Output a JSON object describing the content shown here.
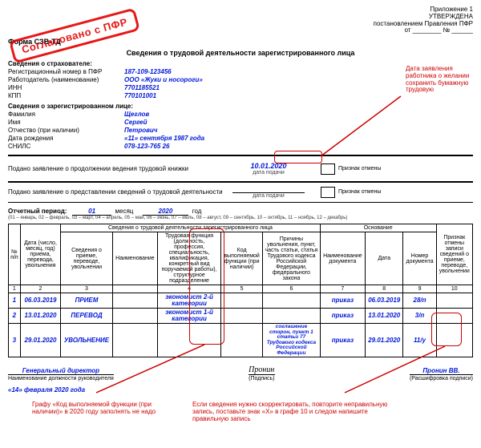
{
  "header": {
    "app1": "Приложение 1",
    "approved": "УТВЕРЖДЕНА",
    "bylaw": "постановлением Правления ПФР",
    "bylaw2": "от ________ № ______"
  },
  "form": {
    "code": "Форма СЗВ-ТД",
    "title": "Сведения о трудовой деятельности зарегистрированного лица"
  },
  "stamp": "Согласовано с ПФР",
  "insurer": {
    "section": "Сведения о страхователе:",
    "reg_label": "Регистрационный номер в ПФР",
    "reg_value": "187-109-123456",
    "employer_label": "Работодатель (наименование)",
    "employer_value": "ООО «Жуки и носороги»",
    "inn_label": "ИНН",
    "inn_value": "7701185521",
    "kpp_label": "КПП",
    "kpp_value": "770101001"
  },
  "person": {
    "section": "Сведения о зарегистрированном лице:",
    "lastname_label": "Фамилия",
    "lastname": "Щеглов",
    "firstname_label": "Имя",
    "firstname": "Сергей",
    "patronymic_label": "Отчество (при наличии)",
    "patronymic": "Петрович",
    "dob_label": "Дата рождения",
    "dob": "«11» сентября 1987 года",
    "snils_label": "СНИЛС",
    "snils": "078-123-765 26"
  },
  "submit1": {
    "text": "Подано заявление о продолжении ведения трудовой книжки",
    "date": "10.01.2020",
    "date_label": "дата подачи",
    "cancel_label": "Признак отмены"
  },
  "submit2": {
    "text": "Подано заявление о представлении сведений о трудовой деятельности",
    "date_label": "дата подачи",
    "cancel_label": "Признак отмены"
  },
  "period": {
    "label": "Отчетный период:",
    "month": "01",
    "month_text": "месяц",
    "year": "2020",
    "year_text": "год",
    "note": "(01 – январь, 02 – февраль, 03 – март, 04 – апрель, 05 – май, 06 – июнь, 07 – июль, 08 – август, 09 – сентябрь, 10 – октябрь, 11 – ноябрь, 12 – декабрь)"
  },
  "table": {
    "h1": "№ п/п",
    "h2": "Дата (число, месяц, год) приема, перевода, увольнения",
    "h3_top": "Сведения о трудовой деятельности зарегистрированного лица",
    "h3a": "Сведения о приеме, переводе, увольнении",
    "h3b": "Наименование",
    "h3c": "Трудовая функция (должность, профессия, специальность, квалификация, конкретный вид поручаемой работы), структурное подразделение",
    "h3d": "Код выполняемой функции (при наличии)",
    "h3e": "Причины увольнения, пункт, часть статьи, статья Трудового кодекса Российской Федерации, федерального закона",
    "h4_top": "Основание",
    "h4a": "Наименование документа",
    "h4b": "Дата",
    "h4c": "Номер документа",
    "h5": "Признак отмены записи сведений о приеме, переводе, увольнении",
    "rows": [
      {
        "n": "1",
        "date": "06.03.2019",
        "act": "ПРИЕМ",
        "name": "",
        "func": "экономист 2-й категории",
        "code": "",
        "reason": "",
        "doc": "приказ",
        "docdate": "06.03.2019",
        "docnum": "28/п",
        "cancel": ""
      },
      {
        "n": "2",
        "date": "13.01.2020",
        "act": "ПЕРЕВОД",
        "name": "",
        "func": "экономист 1-й категории",
        "code": "",
        "reason": "",
        "doc": "приказ",
        "docdate": "13.01.2020",
        "docnum": "3/п",
        "cancel": ""
      },
      {
        "n": "3",
        "date": "29.01.2020",
        "act": "УВОЛЬНЕНИЕ",
        "name": "",
        "func": "",
        "code": "",
        "reason": "соглашение сторон, пункт 1 статьи 77 Трудового кодекса Российской Федерации",
        "doc": "приказ",
        "docdate": "29.01.2020",
        "docnum": "11/у",
        "cancel": ""
      }
    ]
  },
  "footer": {
    "position": "Генеральный директор",
    "position_label": "Наименование должности руководителя",
    "sign": "Пронин",
    "sign_label": "(Подпись)",
    "name": "Пронин ВВ.",
    "name_label": "(Расшифровка подписи)",
    "date": "«14» февраля 2020 года"
  },
  "annotations": {
    "a1": "Дата заявления работника о желании сохранить бумажную трудовую",
    "a2": "Графу «Код выполняемой функции (при наличии)» в 2020 году заполнять не надо",
    "a3": "Если сведения нужно скорректировать, повторите неправильную запись, поставьте знак «Х» в графе 10 и следом напишите правильную запись"
  },
  "colors": {
    "blue": "#0017d8",
    "red": "#c00000"
  }
}
